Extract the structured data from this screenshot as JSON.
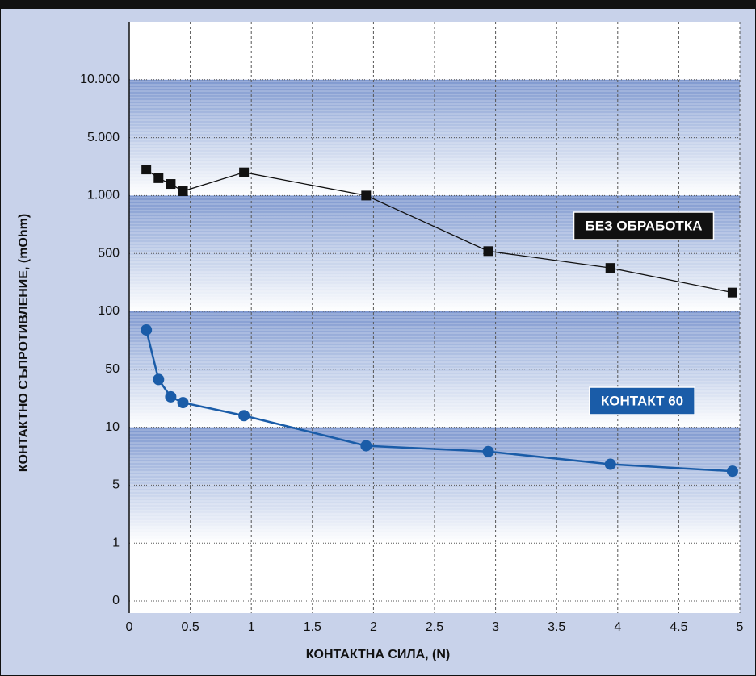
{
  "chart_data": {
    "type": "line",
    "x_label": "КОНТАКТНА СИЛА, (N)",
    "y_label": "КОНТАКТНО СЪПРОТИВЛЕНИЕ, (mOhm)",
    "xlim": [
      0,
      5
    ],
    "xticks": [
      0,
      0.5,
      1,
      1.5,
      2,
      2.5,
      3,
      3.5,
      4,
      4.5,
      5
    ],
    "yticks": [
      0,
      1,
      5,
      10,
      50,
      100,
      500,
      {
        "value": 1000,
        "label": "1.000"
      },
      {
        "value": 5000,
        "label": "5.000"
      },
      {
        "value": 10000,
        "label": "10.000"
      }
    ],
    "grid": true,
    "series": [
      {
        "name": "БЕЗ ОБРАБОТКА",
        "color": "#111111",
        "marker": "square",
        "x": [
          0.14,
          0.24,
          0.34,
          0.44,
          0.94,
          1.94,
          2.94,
          3.94,
          4.94
        ],
        "values": [
          2800,
          2200,
          1800,
          1300,
          2600,
          1000,
          520,
          400,
          230
        ]
      },
      {
        "name": "КОНТАКТ 60",
        "color": "#1a5ca8",
        "marker": "circle",
        "x": [
          0.14,
          0.24,
          0.34,
          0.44,
          0.94,
          1.94,
          2.94,
          3.94,
          4.94
        ],
        "values": [
          84,
          43,
          31,
          27,
          18,
          8.4,
          7.9,
          6.8,
          6.2
        ]
      }
    ]
  }
}
